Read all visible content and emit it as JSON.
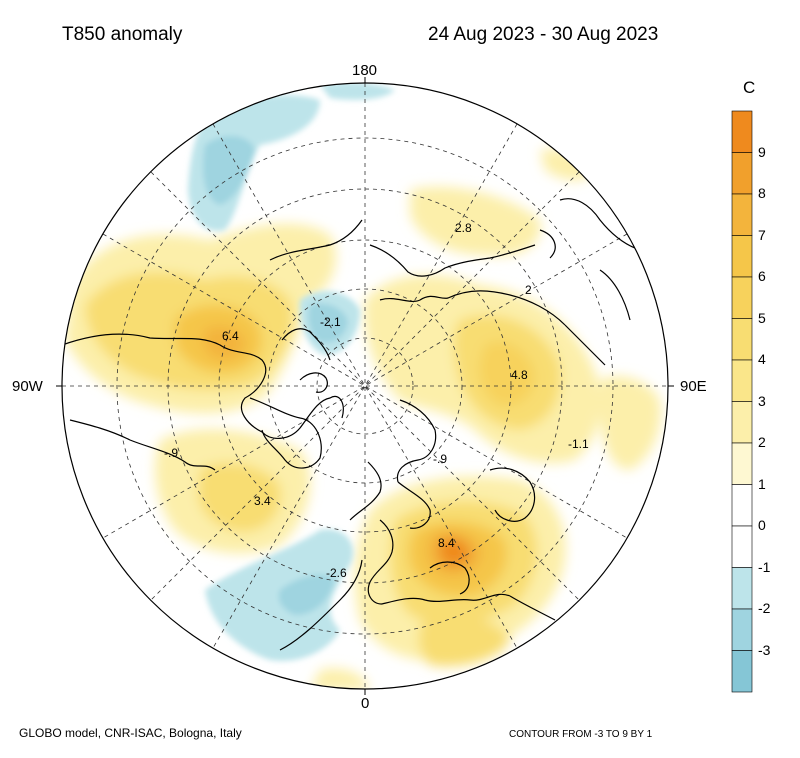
{
  "header": {
    "title": "T850 anomaly",
    "date_range": "24 Aug 2023 - 30 Aug 2023"
  },
  "map": {
    "projection": "north polar stereographic",
    "labels": {
      "top": "180",
      "left": "90W",
      "right": "90E",
      "bottom": "0"
    },
    "annotations": [
      {
        "id": "na-west",
        "text": "6.4"
      },
      {
        "id": "siberia",
        "text": "4.8"
      },
      {
        "id": "europe",
        "text": "8.4"
      },
      {
        "id": "atlantic",
        "text": "3.4"
      },
      {
        "id": "east-asia",
        "text": "2.8"
      },
      {
        "id": "asia-small",
        "text": "2"
      },
      {
        "id": "arctic-cold",
        "text": "-2.1"
      },
      {
        "id": "asia-cold",
        "text": "-1.1"
      },
      {
        "id": "na-cold",
        "text": "-.9"
      },
      {
        "id": "polar-cold",
        "text": "-.9"
      },
      {
        "id": "atlantic-cold",
        "text": "-2.6"
      }
    ]
  },
  "colorbar": {
    "unit": "C",
    "levels": [
      "9",
      "8",
      "7",
      "6",
      "5",
      "4",
      "3",
      "2",
      "1",
      "0",
      "-1",
      "-2",
      "-3"
    ],
    "colors": [
      "#ef8a1e",
      "#f1a02c",
      "#f3b43c",
      "#f5c649",
      "#f7d25c",
      "#f8dd72",
      "#fae68a",
      "#fcefaa",
      "#fef8d2",
      "#ffffff",
      "#ffffff",
      "#bde4ea",
      "#9fd4e0",
      "#85c6d6"
    ]
  },
  "footer": {
    "source": "GLOBO model, CNR-ISAC, Bologna, Italy",
    "contour_note": "CONTOUR FROM -3 TO 9 BY 1"
  }
}
